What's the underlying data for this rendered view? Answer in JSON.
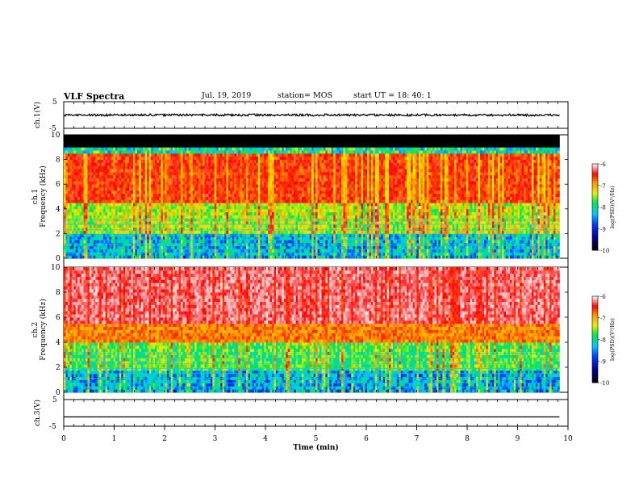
{
  "header": {
    "title": "VLF Spectra",
    "date": "Jul. 19, 2019",
    "station": "station= MOS",
    "start": "start  UT  =   18: 40: 1"
  },
  "chart_data": [
    {
      "type": "line",
      "panel": "ch1-waveform",
      "ylabel": "ch.1(V)",
      "yticks": [
        "5",
        "-5"
      ],
      "ylim": [
        -5,
        5
      ],
      "xlim": [
        0,
        10
      ],
      "series": [
        {
          "name": "",
          "level": 0,
          "noise_amplitude": 0.4
        }
      ]
    },
    {
      "type": "heatmap",
      "panel": "ch1-spectrogram",
      "ylabel_channel": "ch.1",
      "ylabel": "Frequency  (kHz)",
      "yticks": [
        "0",
        "2",
        "4",
        "6",
        "8",
        "10"
      ],
      "ylim": [
        0,
        10
      ],
      "xlim": [
        0,
        9.83
      ],
      "red_band_khz": [
        4.5,
        8.4
      ],
      "noise_floor_khz": 9.0,
      "colorbar": {
        "label": "log(PSD)(V²/Hz)",
        "ticks": [
          "-6",
          "-7",
          "-8",
          "-9",
          "-10"
        ],
        "range": [
          -10,
          -6
        ]
      }
    },
    {
      "type": "heatmap",
      "panel": "ch2-spectrogram",
      "ylabel_channel": "ch.2",
      "ylabel": "Frequency  (kHz)",
      "yticks": [
        "0",
        "2",
        "4",
        "6",
        "8",
        "10"
      ],
      "ylim": [
        0,
        10
      ],
      "xlim": [
        0,
        9.83
      ],
      "red_band_khz": [
        4.0,
        10.0
      ],
      "colorbar": {
        "label": "log(PSD)(V²/Hz)",
        "ticks": [
          "-6",
          "-7",
          "-8",
          "-9",
          "-10"
        ],
        "range": [
          -10,
          -6
        ]
      }
    },
    {
      "type": "line",
      "panel": "ch3-waveform",
      "ylabel": "ch.3(V)",
      "yticks": [
        "5",
        "-5"
      ],
      "ylim": [
        -5,
        5
      ],
      "xlim": [
        0,
        10
      ],
      "series": [
        {
          "name": "",
          "level": -1.5,
          "noise_amplitude": 0
        }
      ]
    }
  ],
  "xaxis": {
    "label": "Time  (min)",
    "ticks": [
      "0",
      "1",
      "2",
      "3",
      "4",
      "5",
      "6",
      "7",
      "8",
      "9",
      "10"
    ],
    "range": [
      0,
      10
    ]
  }
}
